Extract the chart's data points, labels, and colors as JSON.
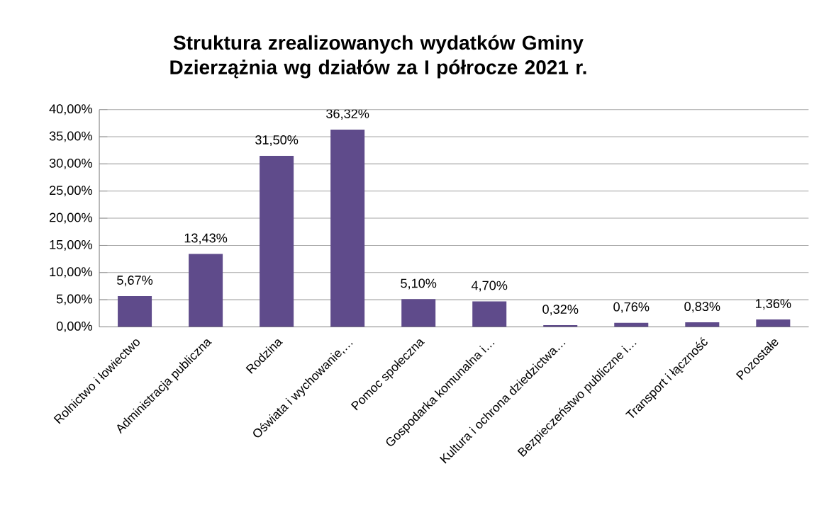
{
  "chart_data": {
    "type": "bar",
    "title": "Struktura zrealizowanych wydatków Gminy Dzierzążnia wg działów za I półrocze 2021 r.",
    "categories": [
      "Rolnictwo i łowiectwo",
      "Administracja publiczna",
      "Rodzina",
      "Oświata i wychowanie,…",
      "Pomoc społeczna",
      "Gospodarka komunalna i…",
      "Kultura i ochrona dziedzictwa…",
      "Bezpieczeństwo publiczne i…",
      "Transport i łączność",
      "Pozostałe"
    ],
    "values": [
      5.67,
      13.43,
      31.5,
      36.32,
      5.1,
      4.7,
      0.32,
      0.76,
      0.83,
      1.36
    ],
    "value_labels": [
      "5,67%",
      "13,43%",
      "31,50%",
      "36,32%",
      "5,10%",
      "4,70%",
      "0,32%",
      "0,76%",
      "0,83%",
      "1,36%"
    ],
    "color": "#5f4b8b",
    "ylim": [
      0,
      40
    ],
    "yticks": [
      {
        "value": 0,
        "label": "0,00%"
      },
      {
        "value": 5,
        "label": "5,00%"
      },
      {
        "value": 10,
        "label": "10,00%"
      },
      {
        "value": 15,
        "label": "15,00%"
      },
      {
        "value": 20,
        "label": "20,00%"
      },
      {
        "value": 25,
        "label": "25,00%"
      },
      {
        "value": 30,
        "label": "30,00%"
      },
      {
        "value": 35,
        "label": "35,00%"
      },
      {
        "value": 40,
        "label": "40,00%"
      }
    ],
    "grid": "y"
  }
}
